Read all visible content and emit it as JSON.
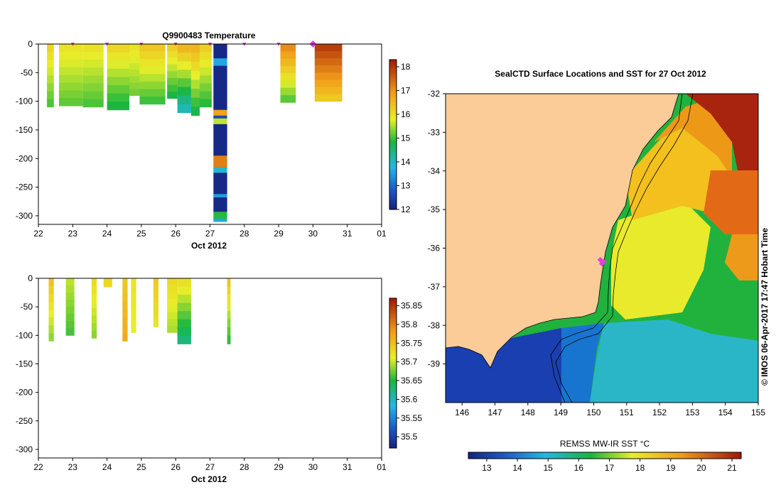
{
  "chart_data": [
    {
      "type": "heatmap",
      "name": "temperature-section",
      "title": "Q9900483  Temperature",
      "xlabel": "Oct 2012",
      "x_ticks": [
        "22",
        "23",
        "24",
        "25",
        "26",
        "27",
        "28",
        "29",
        "30",
        "31",
        "01"
      ],
      "xlim": [
        22,
        32
      ],
      "y_ticks": [
        "0",
        "-50",
        "-100",
        "-150",
        "-200",
        "-250",
        "-300"
      ],
      "ylim": [
        -315,
        0
      ],
      "colorbar": {
        "ticks": [
          "12",
          "13",
          "14",
          "15",
          "16",
          "17",
          "18"
        ],
        "range": [
          12,
          18.3
        ]
      },
      "profile_markers": [
        23,
        24,
        25,
        26,
        27,
        28,
        29
      ],
      "highlight_marker": 30,
      "profiles": [
        {
          "x0": 22.25,
          "x1": 22.45,
          "depth": -110,
          "surface": 16.2,
          "bottom": 15.0
        },
        {
          "x0": 22.6,
          "x1": 23.3,
          "depth": -108,
          "surface": 16.0,
          "bottom": 15.1
        },
        {
          "x0": 23.3,
          "x1": 23.9,
          "depth": -110,
          "surface": 16.0,
          "bottom": 15.0
        },
        {
          "x0": 24.0,
          "x1": 24.65,
          "depth": -115,
          "surface": 16.2,
          "bottom": 14.7
        },
        {
          "x0": 24.65,
          "x1": 24.95,
          "depth": -90,
          "surface": 16.0,
          "bottom": 15.2
        },
        {
          "x0": 24.95,
          "x1": 25.7,
          "depth": -105,
          "surface": 16.4,
          "bottom": 14.9
        },
        {
          "x0": 25.75,
          "x1": 26.05,
          "depth": -95,
          "surface": 16.3,
          "bottom": 14.7
        },
        {
          "x0": 26.05,
          "x1": 26.45,
          "depth": -120,
          "surface": 16.7,
          "bottom": 13.9
        },
        {
          "x0": 26.45,
          "x1": 26.7,
          "depth": -125,
          "surface": 16.7,
          "bottom": 14.6
        },
        {
          "x0": 26.7,
          "x1": 27.05,
          "depth": -110,
          "surface": 16.3,
          "bottom": 14.8
        },
        {
          "x0": 29.05,
          "x1": 29.5,
          "depth": -102,
          "surface": 17.2,
          "bottom": 15.0
        },
        {
          "x0": 30.05,
          "x1": 30.85,
          "depth": -100,
          "surface": 18.0,
          "bottom": 16.2
        }
      ],
      "deep_profile": {
        "x0": 27.1,
        "x1": 27.5,
        "depth": -310,
        "layers": [
          {
            "top": 0,
            "bottom": -25,
            "value": 12.1
          },
          {
            "top": -25,
            "bottom": -38,
            "value": 13.6
          },
          {
            "top": -38,
            "bottom": -115,
            "value": 12.1
          },
          {
            "top": -115,
            "bottom": -125,
            "value": 16.8
          },
          {
            "top": -125,
            "bottom": -130,
            "value": 12.6
          },
          {
            "top": -130,
            "bottom": -140,
            "value": 15.6
          },
          {
            "top": -140,
            "bottom": -195,
            "value": 12.1
          },
          {
            "top": -195,
            "bottom": -215,
            "value": 17.2
          },
          {
            "top": -215,
            "bottom": -225,
            "value": 13.9
          },
          {
            "top": -225,
            "bottom": -262,
            "value": 12.1
          },
          {
            "top": -262,
            "bottom": -268,
            "value": 13.5
          },
          {
            "top": -268,
            "bottom": -293,
            "value": 12.1
          },
          {
            "top": -293,
            "bottom": -305,
            "value": 14.9
          },
          {
            "top": -305,
            "bottom": -310,
            "value": 13.6
          }
        ]
      }
    },
    {
      "type": "heatmap",
      "name": "salinity-section",
      "xlabel": "Oct 2012",
      "x_ticks": [
        "22",
        "23",
        "24",
        "25",
        "26",
        "27",
        "28",
        "29",
        "30",
        "31",
        "01"
      ],
      "xlim": [
        22,
        32
      ],
      "y_ticks": [
        "0",
        "-50",
        "-100",
        "-150",
        "-200",
        "-250",
        "-300"
      ],
      "ylim": [
        -315,
        0
      ],
      "colorbar": {
        "ticks": [
          "35.5",
          "35.55",
          "35.6",
          "35.65",
          "35.7",
          "35.75",
          "35.8",
          "35.85"
        ],
        "range": [
          35.47,
          35.87
        ]
      },
      "profiles": [
        {
          "x0": 22.3,
          "x1": 22.45,
          "depth": -110,
          "surface": 35.75,
          "bottom": 35.68
        },
        {
          "x0": 22.8,
          "x1": 23.05,
          "depth": -100,
          "surface": 35.7,
          "bottom": 35.66
        },
        {
          "x0": 23.55,
          "x1": 23.7,
          "depth": -105,
          "surface": 35.73,
          "bottom": 35.68
        },
        {
          "x0": 23.9,
          "x1": 24.15,
          "depth": -15,
          "surface": 35.73,
          "bottom": 35.73
        },
        {
          "x0": 24.45,
          "x1": 24.6,
          "depth": -110,
          "surface": 35.74,
          "bottom": 35.77
        },
        {
          "x0": 24.7,
          "x1": 24.85,
          "depth": -95,
          "surface": 35.72,
          "bottom": 35.71
        },
        {
          "x0": 25.35,
          "x1": 25.5,
          "depth": -85,
          "surface": 35.74,
          "bottom": 35.72
        },
        {
          "x0": 25.75,
          "x1": 26.05,
          "depth": -95,
          "surface": 35.73,
          "bottom": 35.69
        },
        {
          "x0": 26.05,
          "x1": 26.45,
          "depth": -115,
          "surface": 35.73,
          "bottom": 35.62
        },
        {
          "x0": 27.5,
          "x1": 27.6,
          "depth": -115,
          "surface": 35.75,
          "bottom": 35.65
        }
      ]
    },
    {
      "type": "heatmap",
      "name": "sst-map",
      "title": "SealCTD Surface Locations and SST for 27 Oct 2012",
      "x_ticks": [
        "146",
        "147",
        "148",
        "149",
        "150",
        "151",
        "152",
        "153",
        "154",
        "155"
      ],
      "xlim": [
        145.5,
        155.0
      ],
      "y_ticks": [
        "-32",
        "-33",
        "-34",
        "-35",
        "-36",
        "-37",
        "-38",
        "-39"
      ],
      "ylim": [
        -40.0,
        -32.0
      ],
      "colorbar": {
        "label": "REMSS MW-IR SST °C",
        "ticks": [
          "13",
          "14",
          "15",
          "16",
          "17",
          "18",
          "19",
          "20",
          "21"
        ],
        "range": [
          12.4,
          21.3
        ]
      },
      "side_label": "© IMOS 06-Apr-2017 17:47 Hobart Time",
      "sst_regions": [
        {
          "region": "south-west",
          "value": 13.8
        },
        {
          "region": "south-central",
          "value": 14.8
        },
        {
          "region": "central-green",
          "value": 16.9
        },
        {
          "region": "central-yellow",
          "value": 18.6
        },
        {
          "region": "north-orange",
          "value": 19.6
        },
        {
          "region": "north-east",
          "value": 21.0
        }
      ],
      "seal_locations": [
        {
          "lon": 150.2,
          "lat": -36.3
        },
        {
          "lon": 150.25,
          "lat": -36.4
        },
        {
          "lon": 150.3,
          "lat": -36.35
        }
      ]
    }
  ]
}
